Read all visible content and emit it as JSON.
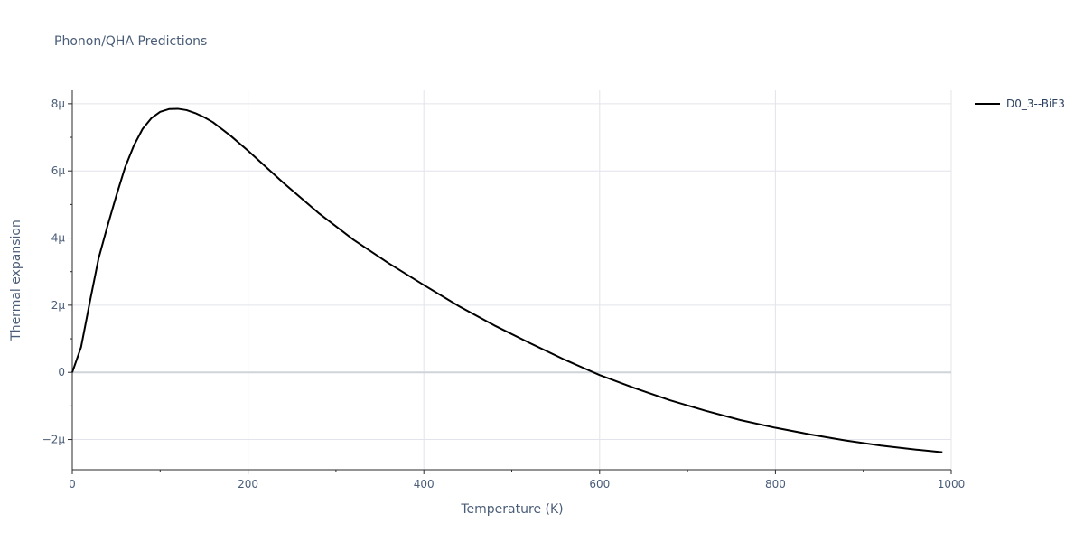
{
  "chart_data": {
    "type": "line",
    "title": "Phonon/QHA Predictions",
    "xlabel": "Temperature (K)",
    "ylabel": "Thermal expansion",
    "xlim": [
      0,
      1000
    ],
    "ylim": [
      -2.9e-06,
      8.4e-06
    ],
    "x_ticks": [
      0,
      200,
      400,
      600,
      800,
      1000
    ],
    "x_tick_labels": [
      "0",
      "200",
      "400",
      "600",
      "800",
      "1000"
    ],
    "y_ticks": [
      -2e-06,
      0,
      2e-06,
      4e-06,
      6e-06,
      8e-06
    ],
    "y_tick_labels": [
      "−2μ",
      "0",
      "2μ",
      "4μ",
      "6μ",
      "8μ"
    ],
    "grid": true,
    "legend_position": "top-right",
    "series": [
      {
        "name": "D0_3--BiF3",
        "color": "#000000",
        "x": [
          0,
          10,
          20,
          30,
          40,
          50,
          60,
          70,
          80,
          90,
          100,
          110,
          120,
          130,
          140,
          150,
          160,
          180,
          200,
          240,
          280,
          320,
          360,
          400,
          440,
          480,
          520,
          560,
          600,
          640,
          680,
          720,
          760,
          800,
          840,
          880,
          920,
          960,
          990
        ],
        "y": [
          0,
          7.5e-07,
          2.1e-06,
          3.4e-06,
          4.35e-06,
          5.25e-06,
          6.1e-06,
          6.75e-06,
          7.25e-06,
          7.57e-06,
          7.76e-06,
          7.84e-06,
          7.85e-06,
          7.81e-06,
          7.72e-06,
          7.6e-06,
          7.45e-06,
          7.05e-06,
          6.6e-06,
          5.65e-06,
          4.75e-06,
          3.95e-06,
          3.25e-06,
          2.6e-06,
          1.97e-06,
          1.4e-06,
          8.8e-07,
          3.8e-07,
          -8e-08,
          -4.7e-07,
          -8.3e-07,
          -1.14e-06,
          -1.42e-06,
          -1.65e-06,
          -1.85e-06,
          -2.03e-06,
          -2.18e-06,
          -2.3e-06,
          -2.38e-06
        ]
      }
    ]
  }
}
